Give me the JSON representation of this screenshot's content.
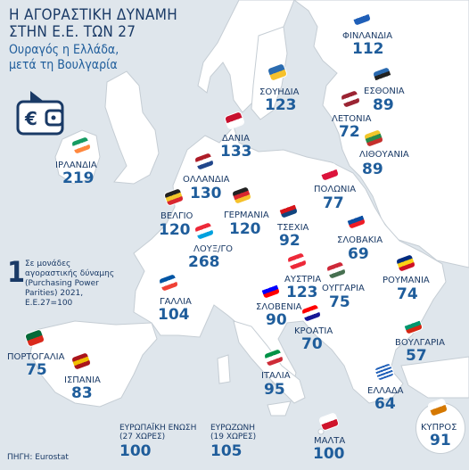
{
  "title_line1": "Η ΑΓΟΡΑΣΤΙΚΗ ΔΥΝΑΜΗ",
  "title_line2": "ΣΤΗΝ Ε.Ε. ΤΩΝ 27",
  "subtitle_line1": "Ουραγός η Ελλάδα,",
  "subtitle_line2": "μετά τη Βουλγαρία",
  "note_marker": "1",
  "note_lines": [
    "Σε μονάδες",
    "αγοραστικής δύναμης",
    "(Purchasing Power",
    "Parities) 2021,",
    "Ε.Ε.27=100"
  ],
  "source": "ΠΗΓΗ: Eurostat",
  "colors": {
    "sea": "#dfe6ec",
    "land": "#ffffff",
    "border": "#c5cdd4",
    "title": "#1a3a66",
    "value": "#1f5d9b"
  },
  "icons": [
    "euro-wallet-icon"
  ],
  "countries": [
    {
      "id": "finland",
      "name": "ΦΙΝΛΑΝΔΙΑ",
      "value": "112",
      "flag": [
        "#ffffff",
        "#1f5fb8"
      ]
    },
    {
      "id": "sweden",
      "name": "ΣΟΥΗΔΙΑ",
      "value": "123",
      "flag": [
        "#2b6cb0",
        "#f6c12b"
      ]
    },
    {
      "id": "estonia",
      "name": "ΕΣΘΟΝΙΑ",
      "value": "89",
      "flag": [
        "#2a6ab0",
        "#222222",
        "#ffffff"
      ]
    },
    {
      "id": "latvia",
      "name": "ΛΕΤΟΝΙΑ",
      "value": "72",
      "flag": [
        "#9b2433",
        "#ffffff",
        "#9b2433"
      ]
    },
    {
      "id": "lithuania",
      "name": "ΛΙΘΟΥΑΝΙΑ",
      "value": "89",
      "flag": [
        "#f2c72b",
        "#2a8a4a",
        "#c5302c"
      ]
    },
    {
      "id": "denmark",
      "name": "ΔΑΝΙΑ",
      "value": "133",
      "flag": [
        "#c8102e",
        "#ffffff"
      ]
    },
    {
      "id": "ireland",
      "name": "ΙΡΛΑΝΔΙΑ",
      "value": "219",
      "flag": [
        "#169b62",
        "#ffffff",
        "#ff883e"
      ]
    },
    {
      "id": "netherlands",
      "name": "ΟΛΛΑΝΔΙΑ",
      "value": "130",
      "flag": [
        "#ae1c28",
        "#ffffff",
        "#21468b"
      ]
    },
    {
      "id": "poland",
      "name": "ΠΟΛΩΝΙΑ",
      "value": "77",
      "flag": [
        "#ffffff",
        "#dc143c"
      ]
    },
    {
      "id": "belgium",
      "name": "ΒΕΛΓΙΟ",
      "value": "120",
      "flag": [
        "#222222",
        "#f2c72b",
        "#d8262f"
      ]
    },
    {
      "id": "germany",
      "name": "ΓΕΡΜΑΝΙΑ",
      "value": "120",
      "flag": [
        "#222222",
        "#d8262f",
        "#f6c12b"
      ]
    },
    {
      "id": "czechia",
      "name": "ΤΣΕΧΙΑ",
      "value": "92",
      "flag": [
        "#ffffff",
        "#d7141a",
        "#11457e"
      ]
    },
    {
      "id": "luxembourg",
      "name": "ΛΟΥΞ/ΓΟ",
      "value": "268",
      "flag": [
        "#ed2939",
        "#ffffff",
        "#00a1de"
      ]
    },
    {
      "id": "slovakia",
      "name": "ΣΛΟΒΑΚΙΑ",
      "value": "69",
      "flag": [
        "#ffffff",
        "#0b4ea2",
        "#ee1c25"
      ]
    },
    {
      "id": "france",
      "name": "ΓΑΛΛΙΑ",
      "value": "104",
      "flag": [
        "#0055a4",
        "#ffffff",
        "#ef4135"
      ]
    },
    {
      "id": "austria",
      "name": "ΑΥΣΤΡΙΑ",
      "value": "123",
      "flag": [
        "#ed2939",
        "#ffffff",
        "#ed2939"
      ]
    },
    {
      "id": "hungary",
      "name": "ΟΥΓΓΑΡΙΑ",
      "value": "75",
      "flag": [
        "#ce2939",
        "#ffffff",
        "#477050"
      ]
    },
    {
      "id": "romania",
      "name": "ΡΟΥΜΑΝΙΑ",
      "value": "74",
      "flag": [
        "#002b7f",
        "#fcd116",
        "#ce1126"
      ]
    },
    {
      "id": "slovenia",
      "name": "ΣΛΟΒΕΝΙΑ",
      "value": "90",
      "flag": [
        "#ffffff",
        "#0000ff",
        "#ff0000"
      ]
    },
    {
      "id": "croatia",
      "name": "ΚΡΟΑΤΙΑ",
      "value": "70",
      "flag": [
        "#ff0000",
        "#ffffff",
        "#171796"
      ]
    },
    {
      "id": "portugal",
      "name": "ΠΟΡΤΟΓΑΛΙΑ",
      "value": "75",
      "flag": [
        "#046a38",
        "#da291c"
      ]
    },
    {
      "id": "spain",
      "name": "ΙΣΠΑΝΙΑ",
      "value": "83",
      "flag": [
        "#aa151b",
        "#f1bf00",
        "#aa151b"
      ]
    },
    {
      "id": "italy",
      "name": "ΙΤΑΛΙΑ",
      "value": "95",
      "flag": [
        "#009246",
        "#ffffff",
        "#ce2b37"
      ]
    },
    {
      "id": "bulgaria",
      "name": "ΒΟΥΛΓΑΡΙΑ",
      "value": "57",
      "flag": [
        "#ffffff",
        "#00966e",
        "#d62612"
      ]
    },
    {
      "id": "greece",
      "name": "ΕΛΛΑΔΑ",
      "value": "64",
      "flag": [
        "#1f5fb8",
        "#ffffff"
      ]
    },
    {
      "id": "malta",
      "name": "ΜΑΛΤΑ",
      "value": "100",
      "flag": [
        "#ffffff",
        "#cf142b"
      ]
    },
    {
      "id": "cyprus",
      "name": "ΚΥΠΡΟΣ",
      "value": "91",
      "flag": [
        "#ffffff",
        "#d57800"
      ]
    }
  ],
  "aggregates": [
    {
      "id": "eu27",
      "name_line1": "ΕΥΡΩΠΑΪΚΗ ΕΝΩΣΗ",
      "name_line2": "(27 ΧΩΡΕΣ)",
      "value": "100"
    },
    {
      "id": "eurozone",
      "name_line1": "ΕΥΡΩΖΩΝΗ",
      "name_line2": "(19 ΧΩΡΕΣ)",
      "value": "105"
    }
  ]
}
